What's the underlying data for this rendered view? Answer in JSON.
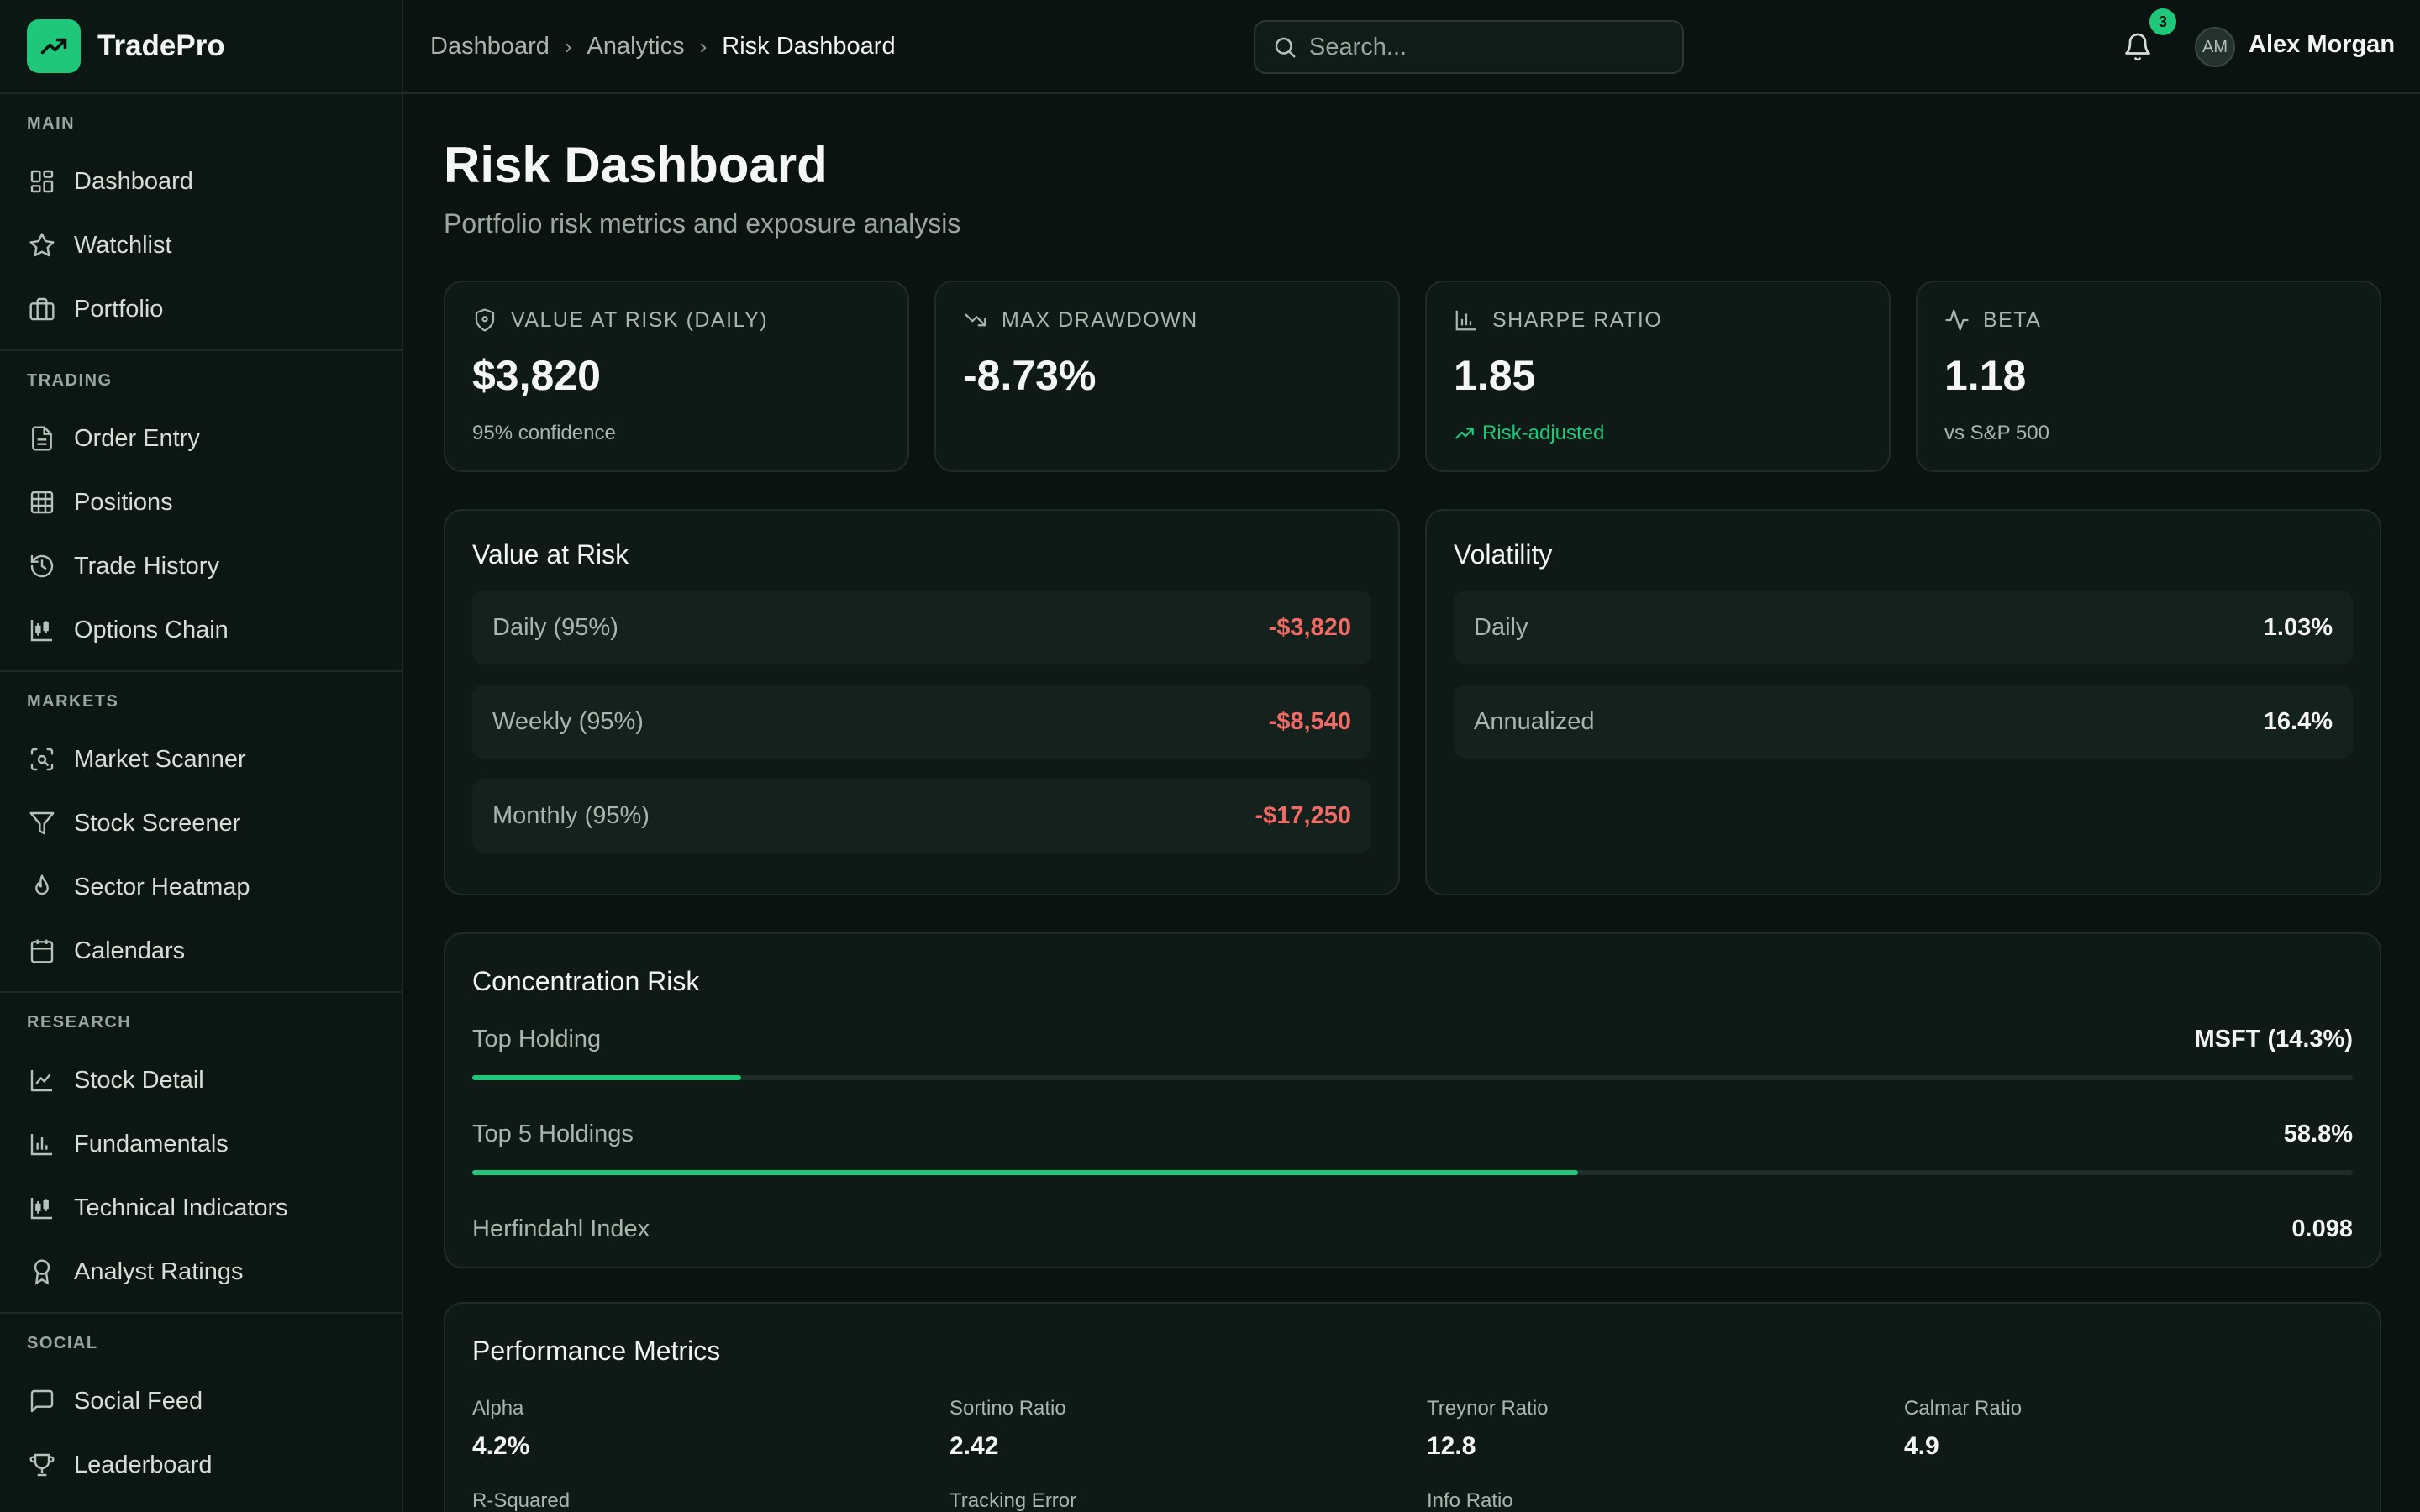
{
  "brand": {
    "name": "TradePro"
  },
  "sidebar": {
    "sections": [
      {
        "label": "MAIN",
        "items": [
          "Dashboard",
          "Watchlist",
          "Portfolio"
        ]
      },
      {
        "label": "TRADING",
        "items": [
          "Order Entry",
          "Positions",
          "Trade History",
          "Options Chain"
        ]
      },
      {
        "label": "MARKETS",
        "items": [
          "Market Scanner",
          "Stock Screener",
          "Sector Heatmap",
          "Calendars"
        ]
      },
      {
        "label": "RESEARCH",
        "items": [
          "Stock Detail",
          "Fundamentals",
          "Technical Indicators",
          "Analyst Ratings"
        ]
      },
      {
        "label": "SOCIAL",
        "items": [
          "Social Feed",
          "Leaderboard"
        ]
      }
    ]
  },
  "header": {
    "breadcrumb": [
      "Dashboard",
      "Analytics",
      "Risk Dashboard"
    ],
    "search_placeholder": "Search...",
    "notification_count": "3",
    "user_initials": "AM",
    "user_name": "Alex Morgan"
  },
  "page": {
    "title": "Risk Dashboard",
    "subtitle": "Portfolio risk metrics and exposure analysis"
  },
  "stats": [
    {
      "label": "VALUE AT RISK (DAILY)",
      "value": "$3,820",
      "note": "95% confidence",
      "icon": "shield-icon"
    },
    {
      "label": "MAX DRAWDOWN",
      "value": "-8.73%",
      "note": "",
      "icon": "trending-down-icon"
    },
    {
      "label": "SHARPE RATIO",
      "value": "1.85",
      "note": "Risk-adjusted",
      "icon": "bar-chart-icon"
    },
    {
      "label": "BETA",
      "value": "1.18",
      "note": "vs S&P 500",
      "icon": "activity-icon"
    }
  ],
  "var_panel": {
    "title": "Value at Risk",
    "rows": [
      {
        "label": "Daily (95%)",
        "value": "-$3,820"
      },
      {
        "label": "Weekly (95%)",
        "value": "-$8,540"
      },
      {
        "label": "Monthly (95%)",
        "value": "-$17,250"
      }
    ]
  },
  "volatility_panel": {
    "title": "Volatility",
    "rows": [
      {
        "label": "Daily",
        "value": "1.03%"
      },
      {
        "label": "Annualized",
        "value": "16.4%"
      }
    ]
  },
  "concentration": {
    "title": "Concentration Risk",
    "rows": [
      {
        "label": "Top Holding",
        "value": "MSFT (14.3%)",
        "fill_pct": 14.3
      },
      {
        "label": "Top 5 Holdings",
        "value": "58.8%",
        "fill_pct": 58.8
      },
      {
        "label": "Herfindahl Index",
        "value": "0.098"
      }
    ]
  },
  "performance": {
    "title": "Performance Metrics",
    "metrics": [
      {
        "label": "Alpha",
        "value": "4.2%"
      },
      {
        "label": "Sortino Ratio",
        "value": "2.42"
      },
      {
        "label": "Treynor Ratio",
        "value": "12.8"
      },
      {
        "label": "Calmar Ratio",
        "value": "4.9"
      },
      {
        "label": "R-Squared",
        "value": ""
      },
      {
        "label": "Tracking Error",
        "value": ""
      },
      {
        "label": "Info Ratio",
        "value": ""
      }
    ]
  },
  "colors": {
    "accent": "#1fc77a",
    "negative": "#f06b65",
    "background": "#0a1310",
    "card": "#0f1a16"
  }
}
